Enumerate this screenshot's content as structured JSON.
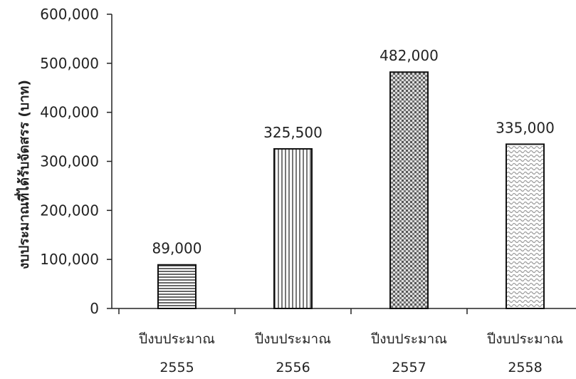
{
  "chart_data": {
    "type": "bar",
    "categories": [
      [
        "ปีงบประมาณ",
        "2555"
      ],
      [
        "ปีงบประมาณ",
        "2556"
      ],
      [
        "ปีงบประมาณ",
        "2557"
      ],
      [
        "ปีงบประมาณ",
        "2558"
      ]
    ],
    "values": [
      89000,
      325500,
      482000,
      335000
    ],
    "data_labels": [
      "89,000",
      "325,500",
      "482,000",
      "335,000"
    ],
    "ylabel": "งบประมาณที่ได้รับจัดสรร (บาท)",
    "ylim": [
      0,
      600000
    ],
    "yticks": [
      0,
      100000,
      200000,
      300000,
      400000,
      500000,
      600000
    ],
    "ytick_labels": [
      "0",
      "100,000",
      "200,000",
      "300,000",
      "400,000",
      "500,000",
      "600,000"
    ],
    "grid": false,
    "legend": "none",
    "bar_patterns": [
      "horizontal-stripes",
      "vertical-stripes",
      "dark-dots",
      "light-waves"
    ],
    "colors": {
      "ink": "#222222",
      "background": "#ffffff"
    }
  }
}
